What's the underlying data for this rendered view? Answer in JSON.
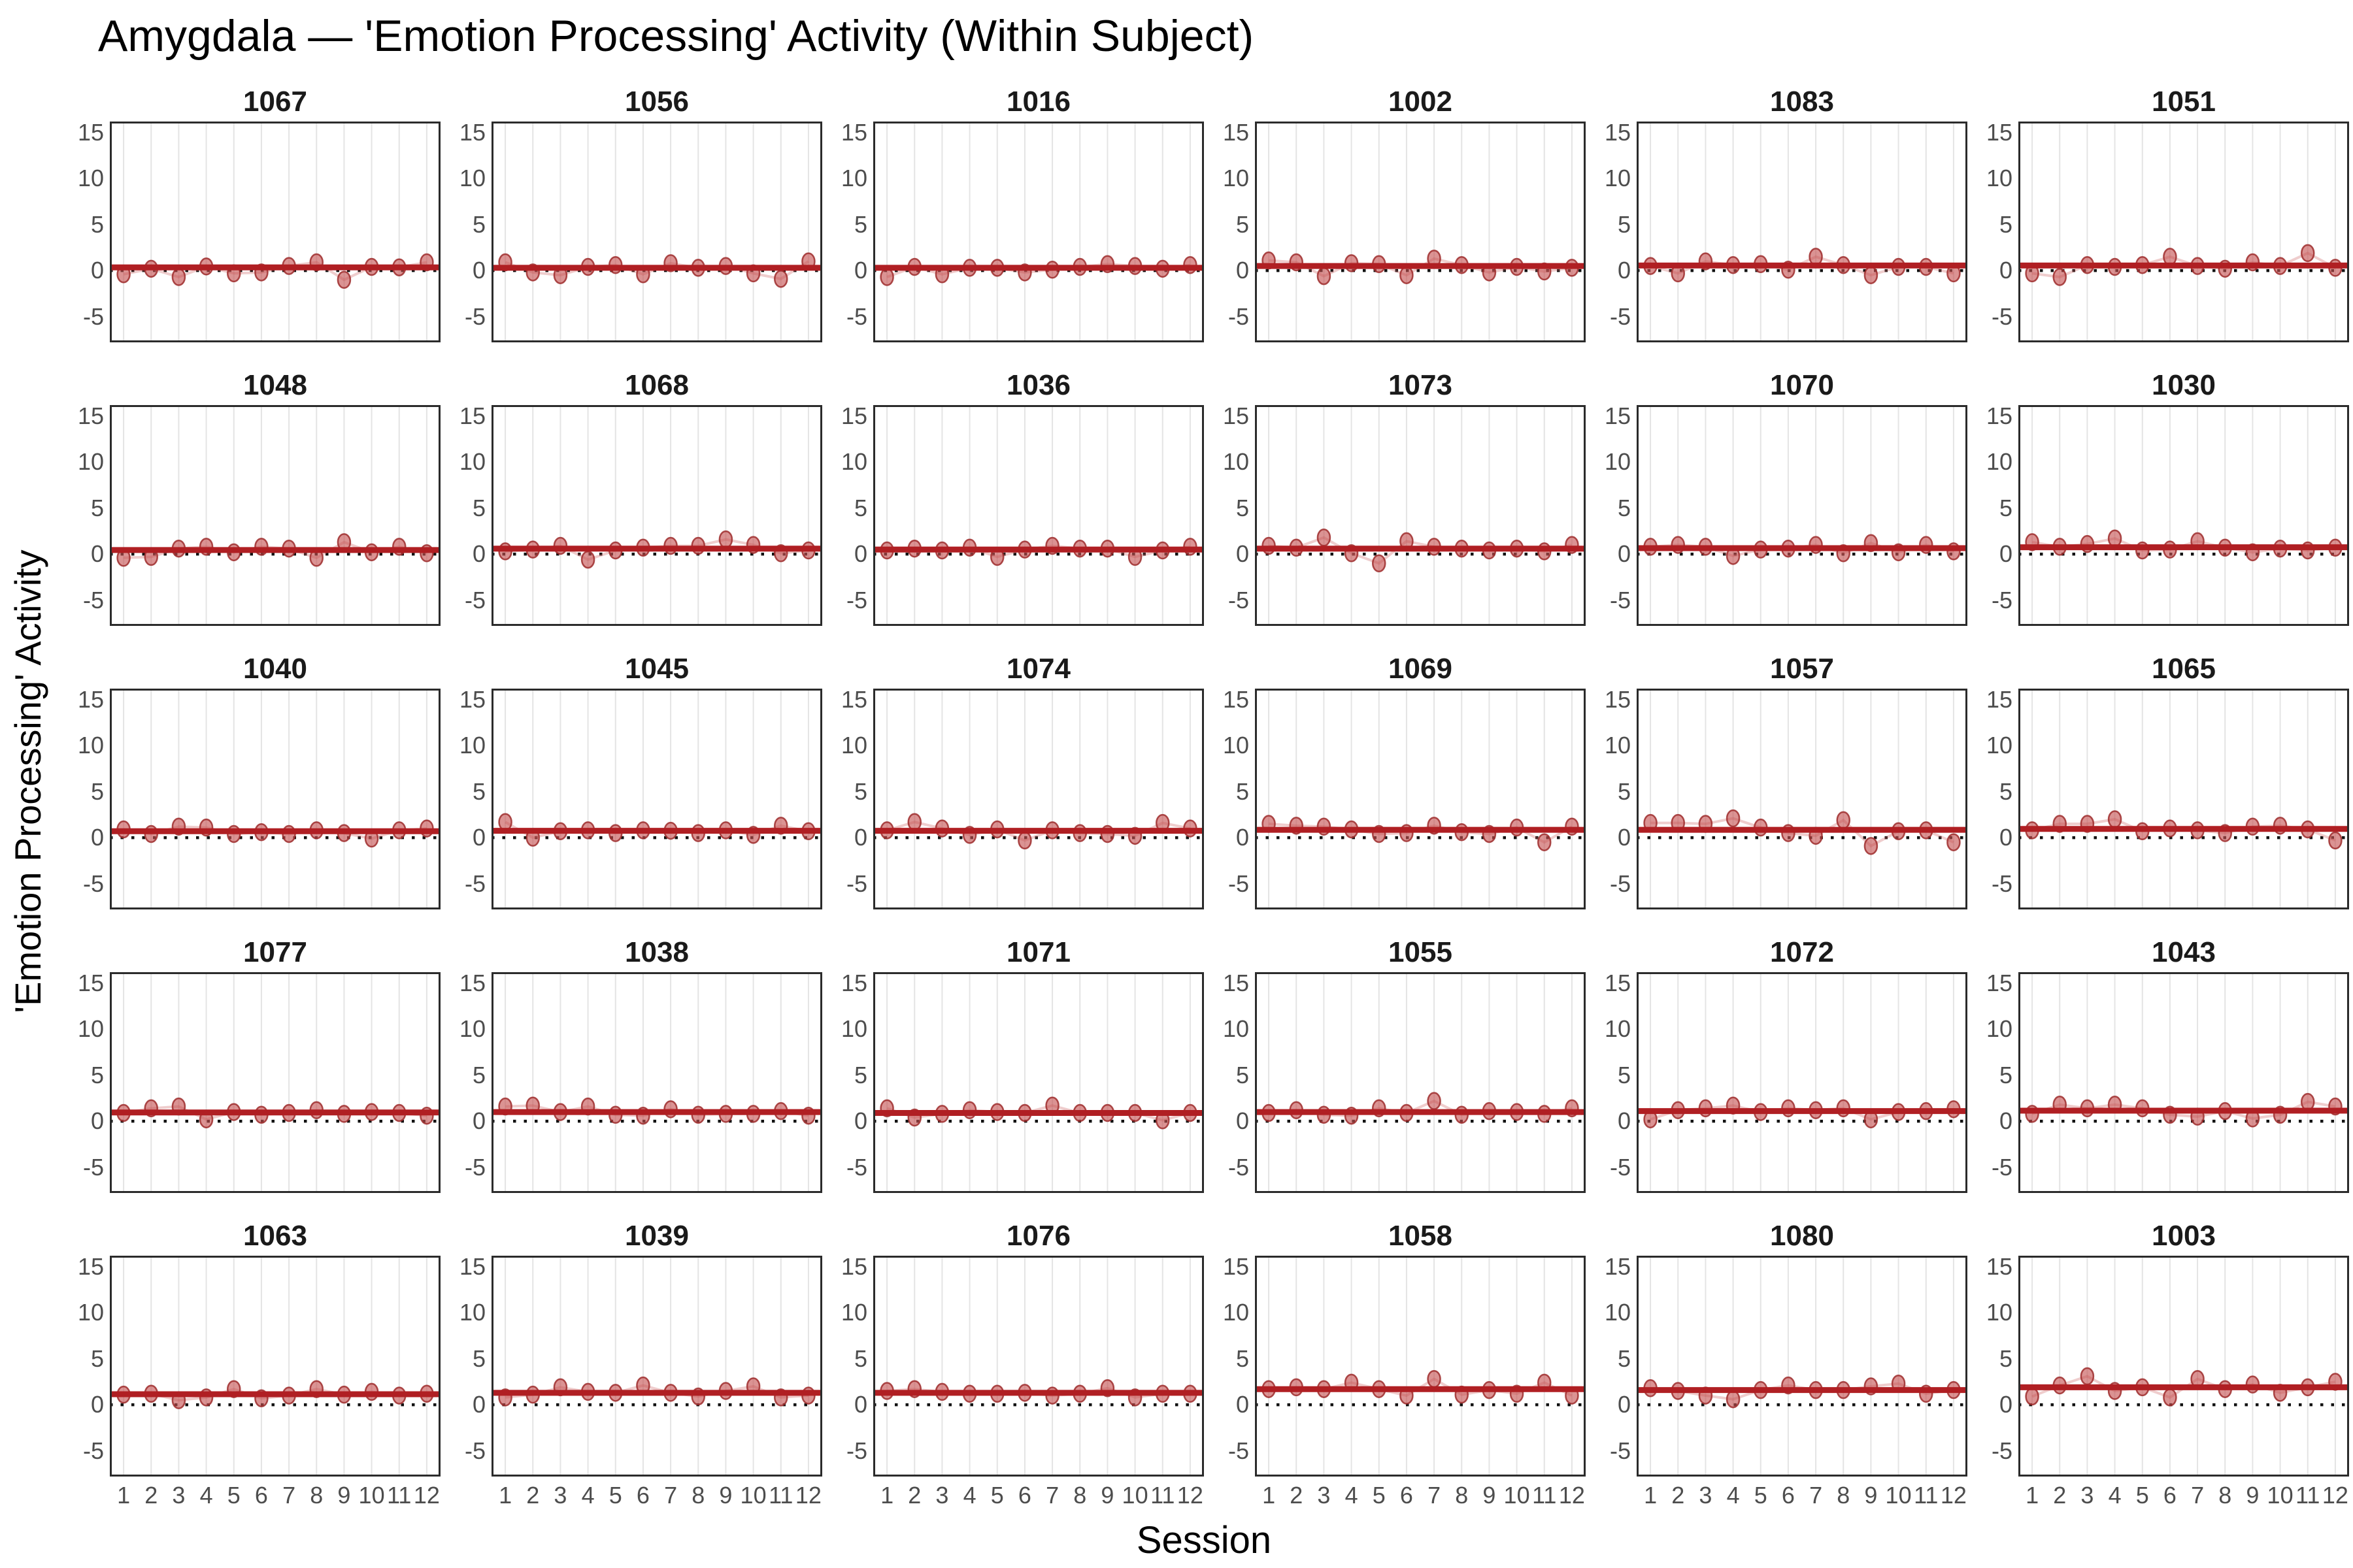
{
  "title": "Amygdala — 'Emotion Processing' Activity (Within Subject)",
  "x_axis_label": "Session",
  "y_axis_label": "'Emotion Processing' Activity",
  "chart_data": {
    "type": "scatter",
    "facet_by": "subject",
    "columns": 6,
    "rows": 5,
    "x": [
      1,
      2,
      3,
      4,
      5,
      6,
      7,
      8,
      9,
      10,
      11,
      12
    ],
    "x_tick_labels": [
      "1",
      "2",
      "3",
      "4",
      "5",
      "6",
      "7",
      "8",
      "9",
      "10",
      "11",
      "12"
    ],
    "y_ticks": [
      15,
      10,
      5,
      0,
      -5
    ],
    "y_domain": [
      -7.8,
      16.2
    ],
    "grid": "vertical-only",
    "reference_line_y": 0,
    "legend": "none",
    "style": {
      "point_fill": "rgba(197,80,80,0.62)",
      "point_stroke": "rgba(158,44,44,0.85)",
      "connector_color": "rgba(205,100,100,0.32)",
      "trend_color": "#b01f23",
      "zero_line_color": "#111111",
      "gridline_color": "#e4e4e4",
      "panel_border_color": "#2b2b2b",
      "tick_label_color": "#4d4d4d"
    },
    "panels": [
      {
        "subject": "1067",
        "values": [
          -0.4,
          0.2,
          -0.7,
          0.45,
          -0.3,
          -0.2,
          0.5,
          0.9,
          -1.0,
          0.4,
          0.35,
          0.9
        ],
        "trend": 0.35
      },
      {
        "subject": "1056",
        "values": [
          0.9,
          -0.2,
          -0.5,
          0.4,
          0.6,
          -0.4,
          0.8,
          0.3,
          0.5,
          -0.3,
          -0.9,
          1.0
        ],
        "trend": 0.3
      },
      {
        "subject": "1016",
        "values": [
          -0.7,
          0.4,
          -0.4,
          0.3,
          0.3,
          -0.2,
          0.1,
          0.4,
          0.7,
          0.5,
          0.2,
          0.6
        ],
        "trend": 0.3
      },
      {
        "subject": "1002",
        "values": [
          1.1,
          0.9,
          -0.6,
          0.8,
          0.7,
          -0.5,
          1.3,
          0.6,
          -0.2,
          0.4,
          -0.1,
          0.3
        ],
        "trend": 0.5
      },
      {
        "subject": "1083",
        "values": [
          0.5,
          -0.3,
          1.0,
          0.6,
          0.7,
          0.1,
          1.5,
          0.6,
          -0.5,
          0.4,
          0.4,
          -0.3
        ],
        "trend": 0.55
      },
      {
        "subject": "1051",
        "values": [
          -0.3,
          -0.7,
          0.6,
          0.4,
          0.6,
          1.5,
          0.5,
          0.2,
          0.9,
          0.5,
          1.9,
          0.3
        ],
        "trend": 0.55
      },
      {
        "subject": "1048",
        "values": [
          -0.4,
          -0.3,
          0.6,
          0.8,
          0.2,
          0.8,
          0.6,
          -0.4,
          1.3,
          0.2,
          0.8,
          0.1
        ],
        "trend": 0.45
      },
      {
        "subject": "1068",
        "values": [
          0.3,
          0.5,
          0.9,
          -0.6,
          0.4,
          0.7,
          0.9,
          0.9,
          1.6,
          1.0,
          0.1,
          0.4
        ],
        "trend": 0.6
      },
      {
        "subject": "1036",
        "values": [
          0.4,
          0.6,
          0.4,
          0.7,
          -0.3,
          0.5,
          0.9,
          0.6,
          0.6,
          -0.3,
          0.4,
          0.8
        ],
        "trend": 0.5
      },
      {
        "subject": "1073",
        "values": [
          0.9,
          0.7,
          1.8,
          0.1,
          -1.0,
          1.4,
          0.8,
          0.6,
          0.4,
          0.6,
          0.3,
          1.0
        ],
        "trend": 0.6
      },
      {
        "subject": "1070",
        "values": [
          0.8,
          1.0,
          0.8,
          -0.2,
          0.5,
          0.6,
          1.0,
          0.1,
          1.2,
          0.2,
          1.0,
          0.3
        ],
        "trend": 0.65
      },
      {
        "subject": "1030",
        "values": [
          1.3,
          0.8,
          1.1,
          1.7,
          0.4,
          0.5,
          1.4,
          0.7,
          0.2,
          0.6,
          0.4,
          0.7
        ],
        "trend": 0.75
      },
      {
        "subject": "1040",
        "values": [
          0.9,
          0.4,
          1.2,
          1.1,
          0.4,
          0.6,
          0.4,
          0.8,
          0.5,
          -0.1,
          0.8,
          1.0
        ],
        "trend": 0.7
      },
      {
        "subject": "1045",
        "values": [
          1.7,
          0.0,
          0.7,
          0.8,
          0.5,
          0.8,
          0.75,
          0.5,
          0.8,
          0.3,
          1.3,
          0.7
        ],
        "trend": 0.75
      },
      {
        "subject": "1074",
        "values": [
          0.8,
          1.7,
          1.0,
          0.3,
          0.9,
          -0.3,
          0.8,
          0.5,
          0.4,
          0.2,
          1.6,
          1.0
        ],
        "trend": 0.75
      },
      {
        "subject": "1069",
        "values": [
          1.5,
          1.3,
          1.2,
          0.9,
          0.4,
          0.5,
          1.3,
          0.6,
          0.4,
          1.1,
          -0.5,
          1.2
        ],
        "trend": 0.85
      },
      {
        "subject": "1057",
        "values": [
          1.6,
          1.6,
          1.5,
          2.1,
          1.1,
          0.5,
          0.2,
          1.9,
          -0.9,
          0.7,
          0.8,
          -0.5
        ],
        "trend": 0.85
      },
      {
        "subject": "1065",
        "values": [
          0.8,
          1.5,
          1.5,
          2.0,
          0.7,
          1.0,
          0.8,
          0.5,
          1.2,
          1.3,
          0.9,
          -0.3
        ],
        "trend": 0.95
      },
      {
        "subject": "1077",
        "values": [
          0.9,
          1.4,
          1.6,
          0.2,
          1.0,
          0.7,
          0.9,
          1.2,
          0.8,
          1.0,
          0.9,
          0.6
        ],
        "trend": 0.95
      },
      {
        "subject": "1038",
        "values": [
          1.6,
          1.7,
          1.0,
          1.6,
          0.7,
          0.6,
          1.3,
          0.7,
          0.8,
          0.8,
          1.1,
          0.6
        ],
        "trend": 1.0
      },
      {
        "subject": "1071",
        "values": [
          1.4,
          0.4,
          0.8,
          1.2,
          1.0,
          0.9,
          1.7,
          0.9,
          0.9,
          0.9,
          0.1,
          0.9
        ],
        "trend": 0.9
      },
      {
        "subject": "1055",
        "values": [
          0.9,
          1.2,
          0.7,
          0.6,
          1.4,
          0.9,
          2.2,
          0.7,
          1.1,
          1.0,
          0.8,
          1.4
        ],
        "trend": 1.0
      },
      {
        "subject": "1072",
        "values": [
          0.2,
          1.2,
          1.4,
          1.7,
          1.0,
          1.4,
          1.2,
          1.4,
          0.2,
          1.0,
          1.1,
          1.3
        ],
        "trend": 1.1
      },
      {
        "subject": "1043",
        "values": [
          0.8,
          1.8,
          1.4,
          1.8,
          1.4,
          0.7,
          0.5,
          1.1,
          0.3,
          0.7,
          2.1,
          1.6
        ],
        "trend": 1.15
      },
      {
        "subject": "1063",
        "values": [
          1.1,
          1.2,
          0.5,
          0.8,
          1.7,
          0.7,
          1.0,
          1.7,
          1.1,
          1.4,
          1.0,
          1.2
        ],
        "trend": 1.15
      },
      {
        "subject": "1039",
        "values": [
          0.8,
          1.1,
          1.9,
          1.4,
          1.3,
          2.1,
          1.3,
          0.9,
          1.5,
          2.0,
          0.8,
          1.0
        ],
        "trend": 1.3
      },
      {
        "subject": "1076",
        "values": [
          1.5,
          1.7,
          1.4,
          1.2,
          1.2,
          1.3,
          1.0,
          1.2,
          1.8,
          0.8,
          1.2,
          1.2
        ],
        "trend": 1.3
      },
      {
        "subject": "1058",
        "values": [
          1.7,
          1.9,
          1.7,
          2.4,
          1.7,
          1.0,
          2.8,
          1.1,
          1.6,
          1.2,
          2.4,
          1.0
        ],
        "trend": 1.7
      },
      {
        "subject": "1080",
        "values": [
          1.8,
          1.5,
          1.0,
          0.6,
          1.6,
          2.1,
          1.6,
          1.6,
          2.0,
          2.3,
          1.2,
          1.6
        ],
        "trend": 1.6
      },
      {
        "subject": "1003",
        "values": [
          0.9,
          2.1,
          3.1,
          1.5,
          1.9,
          0.8,
          2.8,
          1.7,
          2.2,
          1.3,
          1.9,
          2.5
        ],
        "trend": 1.9
      }
    ]
  }
}
